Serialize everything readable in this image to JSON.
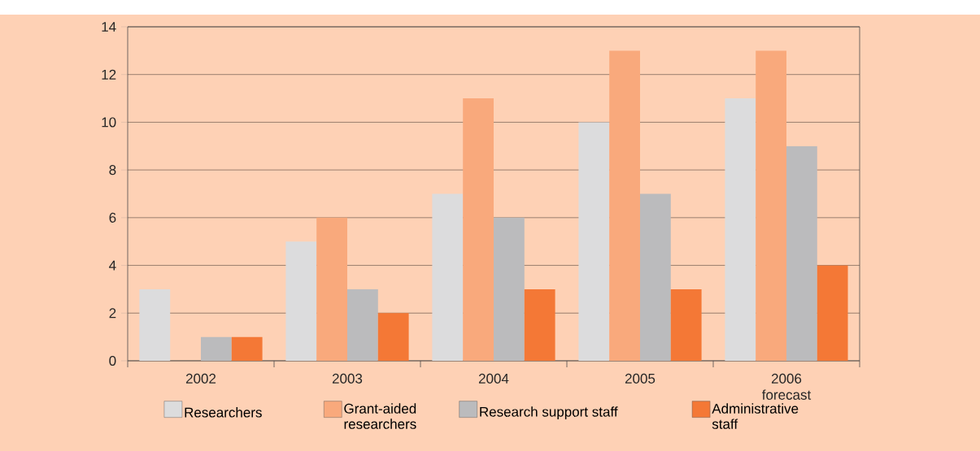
{
  "chart_data": {
    "type": "bar",
    "categories": [
      "2002",
      "2003",
      "2004",
      "2005",
      "2006 forecast"
    ],
    "series": [
      {
        "name": "Researchers",
        "color": "#dcdcdd",
        "values": [
          3,
          5,
          7,
          10,
          11
        ]
      },
      {
        "name": "Grant-aided researchers",
        "color": "#f9a97c",
        "values": [
          0,
          6,
          11,
          13,
          13
        ]
      },
      {
        "name": "Research support staff",
        "color": "#bbbbbd",
        "values": [
          1,
          3,
          6,
          7,
          9
        ]
      },
      {
        "name": "Administrative staff",
        "color": "#f47836",
        "values": [
          1,
          2,
          3,
          3,
          4
        ]
      }
    ],
    "ylim": [
      0,
      14
    ],
    "yticks": [
      0,
      2,
      4,
      6,
      8,
      10,
      12,
      14
    ],
    "grid": "y",
    "legend": "bottom"
  }
}
